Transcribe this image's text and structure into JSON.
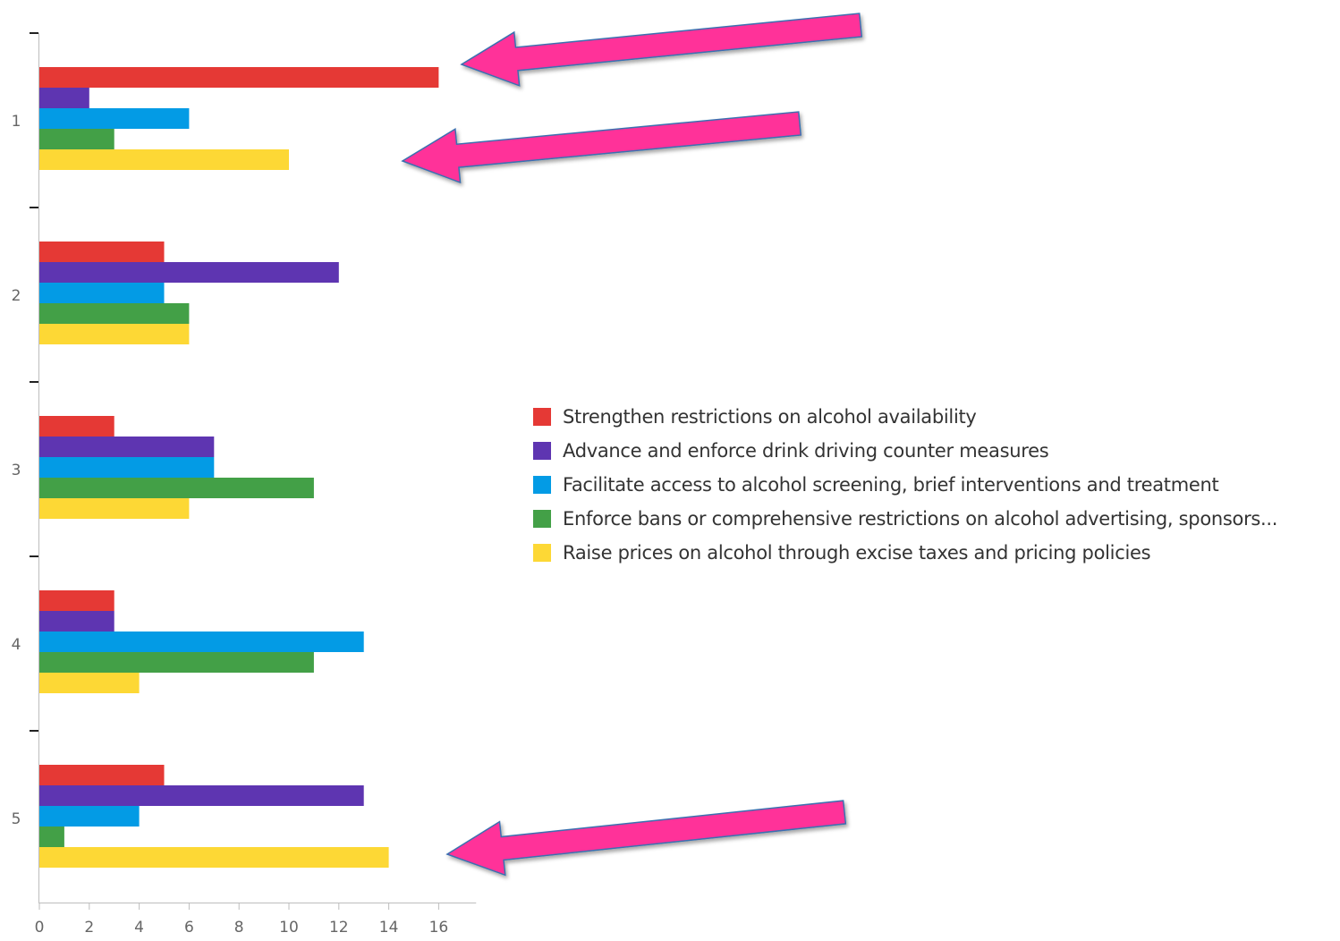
{
  "chart_data": {
    "type": "bar",
    "orientation": "horizontal",
    "categories": [
      "1",
      "2",
      "3",
      "4",
      "5"
    ],
    "x_ticks": [
      "0",
      "2",
      "4",
      "6",
      "8",
      "10",
      "12",
      "14",
      "16"
    ],
    "xlim": [
      0,
      17.5
    ],
    "grid": false,
    "legend_position": "right",
    "series": [
      {
        "name": "Strengthen restrictions on alcohol availability",
        "color": "#e53935",
        "values": [
          16,
          5,
          3,
          3,
          5
        ]
      },
      {
        "name": "Advance and enforce drink driving counter measures",
        "color": "#5e35b1",
        "values": [
          2,
          12,
          7,
          3,
          13
        ]
      },
      {
        "name": "Facilitate access to alcohol screening, brief interventions and treatment",
        "color": "#039be5",
        "values": [
          6,
          5,
          7,
          13,
          4
        ]
      },
      {
        "name": "Enforce bans or comprehensive restrictions on alcohol advertising, sponsors...",
        "color": "#43a047",
        "values": [
          3,
          6,
          11,
          11,
          1
        ]
      },
      {
        "name": "Raise prices on alcohol through excise taxes and pricing policies",
        "color": "#fdd835",
        "values": [
          10,
          6,
          6,
          4,
          14
        ]
      }
    ],
    "annotations": [
      {
        "type": "arrow",
        "color": "#ff3399",
        "points_to": {
          "category": "1",
          "series": "Strengthen restrictions on alcohol availability"
        }
      },
      {
        "type": "arrow",
        "color": "#ff3399",
        "points_to": {
          "category": "1",
          "series": "Raise prices on alcohol through excise taxes and pricing policies"
        }
      },
      {
        "type": "arrow",
        "color": "#ff3399",
        "points_to": {
          "category": "5",
          "series": "Raise prices on alcohol through excise taxes and pricing policies"
        }
      }
    ]
  }
}
